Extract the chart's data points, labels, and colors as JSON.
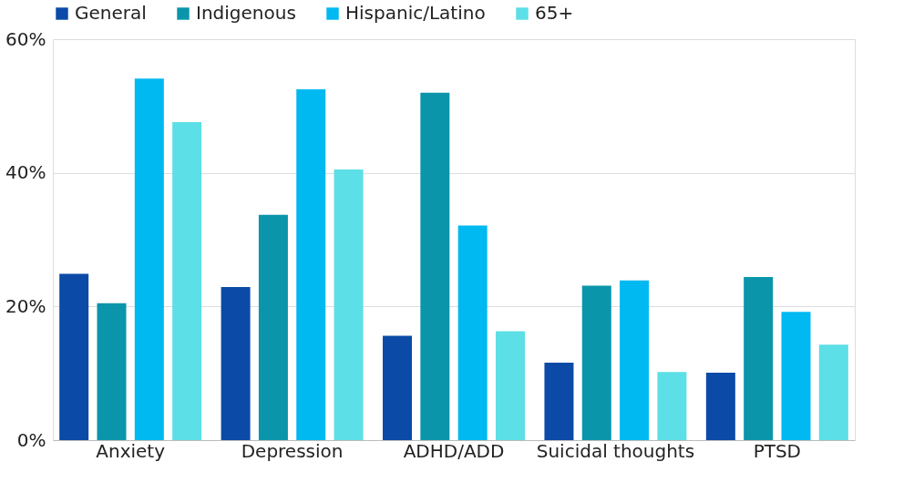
{
  "chart_data": {
    "type": "bar",
    "categories": [
      "Anxiety",
      "Depression",
      "ADHD/ADD",
      "Suicidal thoughts",
      "PTSD"
    ],
    "series": [
      {
        "name": "General",
        "color": "#0b4aa6",
        "values": [
          24.9,
          22.9,
          15.6,
          11.6,
          10.1
        ]
      },
      {
        "name": "Indigenous",
        "color": "#0a95ab",
        "values": [
          20.5,
          33.7,
          52,
          23.1,
          24.4
        ]
      },
      {
        "name": "Hispanic/Latino",
        "color": "#00b9f1",
        "values": [
          54.1,
          52.5,
          32.1,
          23.9,
          19.2
        ]
      },
      {
        "name": "65+",
        "color": "#5cdfe6",
        "values": [
          47.6,
          40.5,
          16.3,
          10.2,
          14.3
        ]
      }
    ],
    "ylim": [
      0,
      60
    ],
    "yticks": [
      {
        "value": 0,
        "label": "0%"
      },
      {
        "value": 20,
        "label": "20%"
      },
      {
        "value": 40,
        "label": "40%"
      },
      {
        "value": 60,
        "label": "60%"
      }
    ],
    "grid": "y",
    "legend": "top"
  }
}
